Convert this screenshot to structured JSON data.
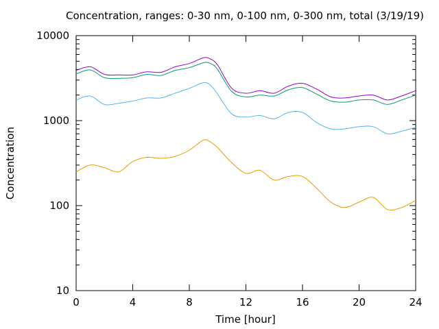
{
  "chart_data": {
    "type": "line",
    "title": "Concentration, ranges: 0-30 nm, 0-100 nm, 0-300 nm, total (3/19/19)",
    "xlabel": "Time [hour]",
    "ylabel": "Concentration",
    "xlim": [
      0,
      24
    ],
    "ylim": [
      10,
      10000
    ],
    "yscale": "log",
    "xticks": [
      0,
      4,
      8,
      12,
      16,
      20,
      24
    ],
    "yticks": [
      10,
      100,
      1000,
      10000
    ],
    "xtick_labels": [
      "0",
      "4",
      "8",
      "12",
      "16",
      "20",
      "24"
    ],
    "ytick_labels": [
      "10",
      "100",
      "1000",
      "10000"
    ],
    "grid": false,
    "x": [
      0,
      1,
      2,
      3,
      4,
      5,
      6,
      7,
      8,
      9,
      9.5,
      10,
      11,
      12,
      13,
      14,
      15,
      16,
      17,
      18,
      19,
      20,
      21,
      22,
      23,
      24
    ],
    "series": [
      {
        "color": "#e69f00",
        "values": [
          250,
          300,
          280,
          250,
          330,
          370,
          360,
          380,
          450,
          590,
          560,
          480,
          320,
          240,
          260,
          200,
          220,
          220,
          160,
          110,
          95,
          110,
          125,
          90,
          95,
          115
        ]
      },
      {
        "color": "#56b4e9",
        "values": [
          1750,
          1950,
          1550,
          1600,
          1700,
          1850,
          1850,
          2100,
          2400,
          2800,
          2600,
          2050,
          1200,
          1100,
          1150,
          1050,
          1250,
          1250,
          950,
          800,
          800,
          850,
          850,
          700,
          750,
          830
        ]
      },
      {
        "color": "#009e73",
        "values": [
          3550,
          3950,
          3200,
          3150,
          3200,
          3500,
          3400,
          3900,
          4200,
          4800,
          4700,
          4000,
          2200,
          1900,
          2000,
          1950,
          2300,
          2450,
          2050,
          1700,
          1650,
          1750,
          1750,
          1550,
          1750,
          2000
        ]
      },
      {
        "color": "#9400d3",
        "values": [
          3900,
          4300,
          3500,
          3450,
          3450,
          3750,
          3700,
          4300,
          4700,
          5500,
          5300,
          4500,
          2400,
          2100,
          2250,
          2100,
          2550,
          2750,
          2350,
          1900,
          1850,
          1950,
          2000,
          1750,
          1950,
          2250
        ]
      }
    ]
  }
}
